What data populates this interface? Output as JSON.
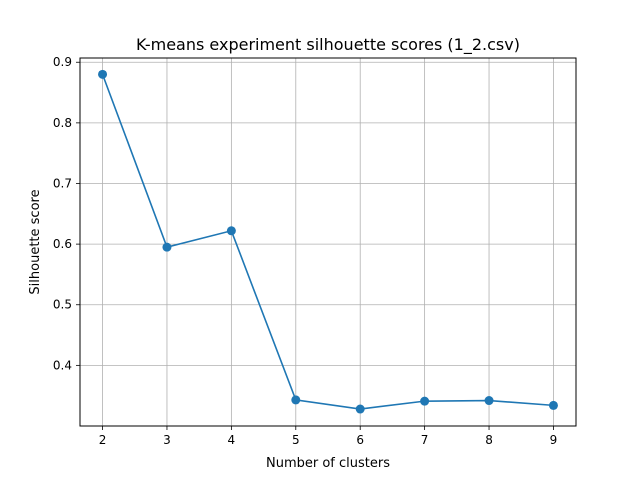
{
  "chart_data": {
    "type": "line",
    "title": "K-means experiment silhouette scores (1_2.csv)",
    "xlabel": "Number of clusters",
    "ylabel": "Silhouette score",
    "x": [
      2,
      3,
      4,
      5,
      6,
      7,
      8,
      9
    ],
    "series": [
      {
        "values": [
          0.88,
          0.595,
          0.622,
          0.343,
          0.328,
          0.341,
          0.342,
          0.334
        ],
        "color": "#1f77b4"
      }
    ],
    "xlim": [
      1.65,
      9.35
    ],
    "ylim": [
      0.3,
      0.907
    ],
    "xticks": [
      "2",
      "3",
      "4",
      "5",
      "6",
      "7",
      "8",
      "9"
    ],
    "yticks": [
      "0.4",
      "0.5",
      "0.6",
      "0.7",
      "0.8",
      "0.9"
    ],
    "grid": true,
    "marker": "circle"
  }
}
